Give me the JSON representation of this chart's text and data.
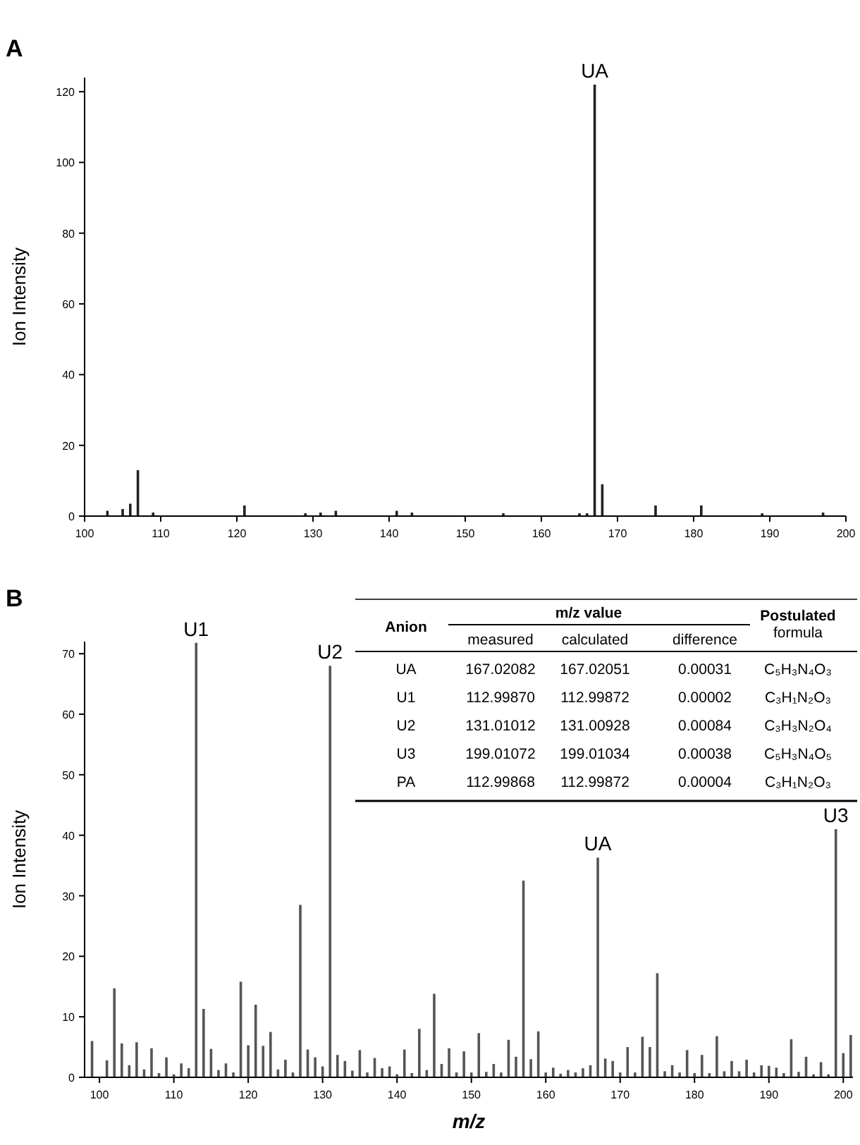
{
  "chart_data": [
    {
      "type": "bar",
      "title": "A",
      "ylabel": "Ion Intensity",
      "color": "#222222",
      "xlim": [
        100,
        200
      ],
      "ylim": [
        0,
        124
      ],
      "xticks": [
        100,
        110,
        120,
        130,
        140,
        150,
        160,
        170,
        180,
        190,
        200
      ],
      "yticks": [
        0,
        20,
        40,
        60,
        80,
        100,
        120
      ],
      "x": [
        103,
        105,
        106,
        107,
        109,
        121,
        129,
        131,
        133,
        141,
        143,
        155,
        165,
        166,
        167,
        168,
        175,
        181,
        189,
        197
      ],
      "values": [
        1.5,
        2,
        3.5,
        13,
        1,
        3,
        0.8,
        1,
        1.5,
        1.5,
        1,
        0.8,
        0.8,
        0.8,
        122,
        9,
        3,
        3,
        0.8,
        1
      ],
      "annotations": [
        {
          "text": "UA",
          "x": 167,
          "y": 122
        }
      ]
    },
    {
      "type": "bar",
      "title": "B",
      "xlabel": "m/z",
      "ylabel": "Ion Intensity",
      "color": "#555555",
      "xlim": [
        98,
        201.3
      ],
      "ylim": [
        0,
        72
      ],
      "xticks": [
        100,
        110,
        120,
        130,
        140,
        150,
        160,
        170,
        180,
        190,
        200
      ],
      "yticks": [
        0,
        10,
        20,
        30,
        40,
        50,
        60,
        70
      ],
      "x": [
        99,
        101,
        102,
        103,
        104,
        105,
        106,
        107,
        108,
        109,
        110,
        111,
        112,
        113,
        114,
        115,
        116,
        117,
        118,
        119,
        120,
        121,
        122,
        123,
        124,
        125,
        126,
        127,
        128,
        129,
        130,
        131,
        132,
        133,
        134,
        135,
        136,
        137,
        138,
        139,
        140,
        141,
        142,
        143,
        144,
        145,
        146,
        147,
        148,
        149,
        150,
        151,
        152,
        153,
        154,
        155,
        156,
        157,
        158,
        159,
        160,
        161,
        162,
        163,
        164,
        165,
        166,
        167,
        168,
        169,
        170,
        171,
        172,
        173,
        174,
        175,
        176,
        177,
        178,
        179,
        180,
        181,
        182,
        183,
        184,
        185,
        186,
        187,
        188,
        189,
        190,
        191,
        192,
        193,
        194,
        195,
        196,
        197,
        198,
        199,
        200,
        201
      ],
      "values": [
        6,
        2.8,
        14.7,
        5.6,
        2,
        5.8,
        1.3,
        4.8,
        0.7,
        3.3,
        0.5,
        2.3,
        1.5,
        71.8,
        11.3,
        4.7,
        1.2,
        2.3,
        0.8,
        15.8,
        5.3,
        12,
        5.2,
        7.5,
        1.3,
        2.9,
        0.8,
        28.5,
        4.6,
        3.3,
        1.8,
        68,
        3.7,
        2.7,
        1.1,
        4.5,
        0.8,
        3.2,
        1.5,
        1.8,
        0.5,
        4.6,
        0.7,
        8,
        1.2,
        13.8,
        2.2,
        4.8,
        0.8,
        4.3,
        0.8,
        7.3,
        0.9,
        2.2,
        0.8,
        6.2,
        3.4,
        32.5,
        3,
        7.6,
        0.8,
        1.6,
        0.6,
        1.2,
        0.8,
        1.5,
        2,
        36.3,
        3.1,
        2.7,
        0.8,
        5,
        0.8,
        6.7,
        5,
        17.2,
        1,
        2,
        0.8,
        4.5,
        0.7,
        3.7,
        0.7,
        6.8,
        1,
        2.7,
        1,
        2.9,
        0.8,
        2,
        1.9,
        1.6,
        0.7,
        6.3,
        0.9,
        3.4,
        0.5,
        2.5,
        0.5,
        41,
        4,
        7
      ],
      "annotations": [
        {
          "text": "U1",
          "x": 113,
          "y": 71.8
        },
        {
          "text": "U2",
          "x": 131,
          "y": 68
        },
        {
          "text": "UA",
          "x": 167,
          "y": 36.3
        },
        {
          "text": "U3",
          "x": 199,
          "y": 41
        }
      ]
    },
    {
      "type": "other",
      "annotations": [
        "Anion",
        "m/z value",
        "measured",
        "calculated",
        "difference",
        "Postulated formula"
      ],
      "y_categories": [
        "UA",
        "U1",
        "U2",
        "U3",
        "PA"
      ],
      "cell_labels": [
        [
          "167.02082",
          "167.02051",
          "0.00031",
          "C₅H₃N₄O₃"
        ],
        [
          "112.99870",
          "112.99872",
          "0.00002",
          "C₃H₁N₂O₃"
        ],
        [
          "131.01012",
          "131.00928",
          "0.00084",
          "C₃H₃N₂O₄"
        ],
        [
          "199.01072",
          "199.01034",
          "0.00038",
          "C₅H₃N₄O₅"
        ],
        [
          "112.99868",
          "112.99872",
          "0.00004",
          "C₃H₁N₂O₃"
        ]
      ]
    }
  ]
}
